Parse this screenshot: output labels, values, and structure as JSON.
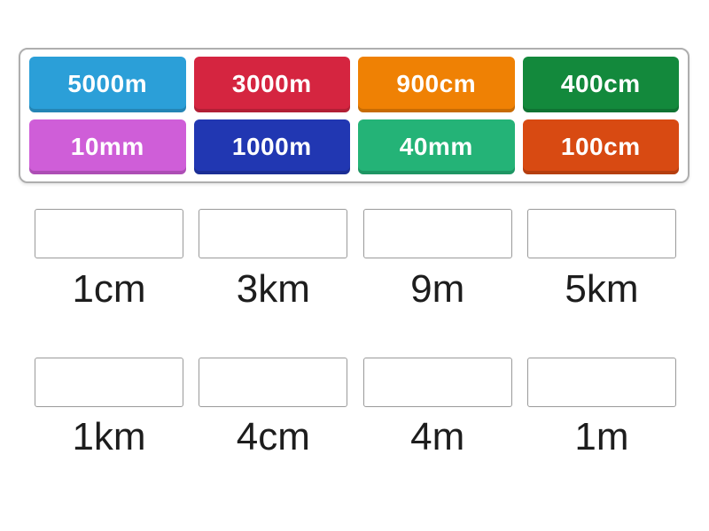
{
  "tray": {
    "tiles": [
      {
        "label": "5000m",
        "color": "#2b9fd8"
      },
      {
        "label": "3000m",
        "color": "#d52540"
      },
      {
        "label": "900cm",
        "color": "#ef8104"
      },
      {
        "label": "400cm",
        "color": "#13893c"
      },
      {
        "label": "10mm",
        "color": "#cf5ed8"
      },
      {
        "label": "1000m",
        "color": "#2137b2"
      },
      {
        "label": "40mm",
        "color": "#24b377"
      },
      {
        "label": "100cm",
        "color": "#d84a12"
      }
    ],
    "tile_text_color": "#ffffff"
  },
  "targets": {
    "rows": [
      {
        "labels": [
          "1cm",
          "3km",
          "9m",
          "5km"
        ]
      },
      {
        "labels": [
          "1km",
          "4cm",
          "4m",
          "1m"
        ]
      }
    ]
  }
}
